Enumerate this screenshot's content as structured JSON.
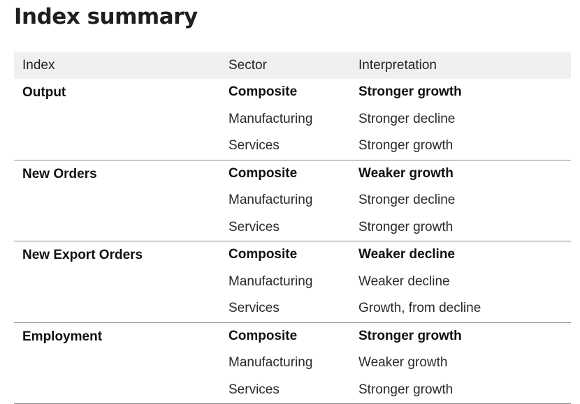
{
  "title": "Index summary",
  "table": {
    "headers": {
      "index": "Index",
      "sector": "Sector",
      "interpretation": "Interpretation"
    },
    "groups": [
      {
        "index": "Output",
        "rows": [
          {
            "sector": "Composite",
            "interpretation": "Stronger growth"
          },
          {
            "sector": "Manufacturing",
            "interpretation": "Stronger decline"
          },
          {
            "sector": "Services",
            "interpretation": "Stronger growth"
          }
        ]
      },
      {
        "index": "New Orders",
        "rows": [
          {
            "sector": "Composite",
            "interpretation": "Weaker growth"
          },
          {
            "sector": "Manufacturing",
            "interpretation": "Stronger decline"
          },
          {
            "sector": "Services",
            "interpretation": "Stronger growth"
          }
        ]
      },
      {
        "index": "New Export Orders",
        "rows": [
          {
            "sector": "Composite",
            "interpretation": "Weaker decline"
          },
          {
            "sector": "Manufacturing",
            "interpretation": "Weaker decline"
          },
          {
            "sector": "Services",
            "interpretation": "Growth, from decline"
          }
        ]
      },
      {
        "index": "Employment",
        "rows": [
          {
            "sector": "Composite",
            "interpretation": "Stronger growth"
          },
          {
            "sector": "Manufacturing",
            "interpretation": "Weaker growth"
          },
          {
            "sector": "Services",
            "interpretation": "Stronger growth"
          }
        ]
      }
    ]
  }
}
